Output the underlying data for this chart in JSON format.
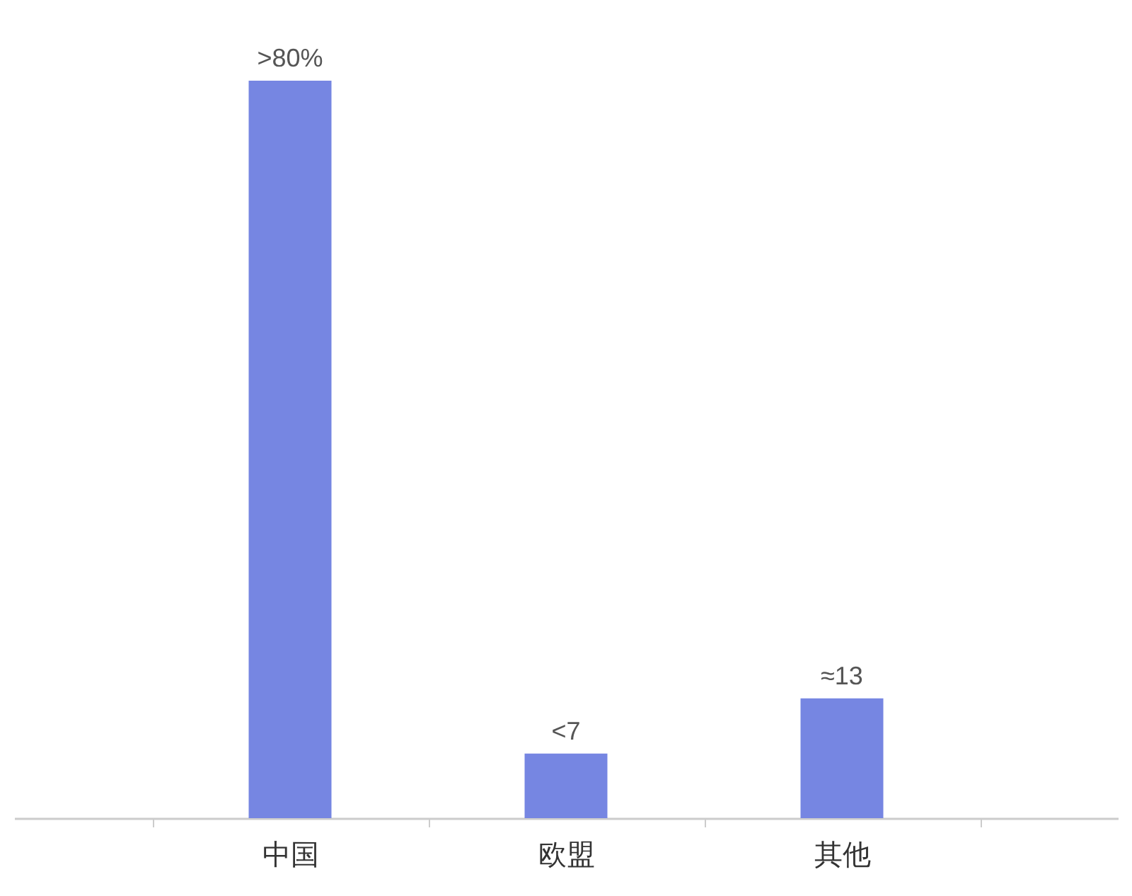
{
  "chart_data": {
    "type": "bar",
    "categories": [
      "中国",
      "欧盟",
      "其他"
    ],
    "values": [
      80,
      7,
      13
    ],
    "value_labels": [
      ">80%",
      "<7",
      "≈13"
    ],
    "color": "#6f80e0"
  }
}
